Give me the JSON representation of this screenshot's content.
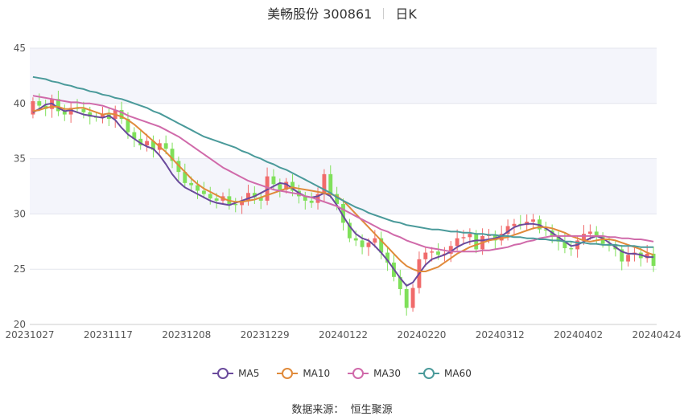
{
  "header": {
    "stock_name": "美畅股份 300861",
    "period": "日K"
  },
  "footer": {
    "source_label": "数据来源：",
    "source_name": "恒生聚源"
  },
  "chart_data": {
    "type": "candlestick",
    "ylim": [
      20,
      45
    ],
    "y_ticks": [
      "20",
      "25",
      "30",
      "35",
      "40",
      "45"
    ],
    "x_ticks": [
      "20231027",
      "20231117",
      "20231208",
      "20231229",
      "20240122",
      "20240220",
      "20240312",
      "20240402",
      "20240424"
    ],
    "grid": true,
    "legend_position": "bottom",
    "colors": {
      "up": "#f06b6b",
      "down": "#7fe05a",
      "MA5": "#6a4a9c",
      "MA10": "#e08a3a",
      "MA30": "#d06aaa",
      "MA60": "#4a9a9a",
      "band": "#f4f5fb"
    },
    "series": [
      {
        "name": "MA5",
        "values": [
          39.2,
          39.5,
          39.9,
          40.0,
          39.6,
          39.3,
          39.4,
          39.2,
          39.0,
          38.9,
          38.8,
          38.7,
          38.9,
          38.5,
          37.8,
          37.2,
          36.8,
          36.4,
          36.1,
          35.9,
          35.3,
          34.5,
          33.6,
          32.9,
          32.4,
          32.1,
          31.8,
          31.5,
          31.2,
          31.0,
          30.9,
          30.8,
          31.0,
          31.2,
          31.4,
          31.6,
          31.9,
          32.2,
          32.5,
          32.8,
          32.7,
          32.3,
          31.9,
          31.6,
          31.5,
          31.6,
          31.9,
          31.6,
          30.8,
          29.8,
          28.9,
          28.2,
          27.8,
          27.6,
          27.1,
          26.5,
          25.8,
          25.0,
          24.2,
          23.5,
          23.8,
          24.6,
          25.4,
          25.9,
          26.1,
          26.3,
          26.6,
          27.0,
          27.3,
          27.5,
          27.6,
          27.6,
          27.7,
          27.8,
          28.0,
          28.4,
          28.8,
          29.0,
          29.1,
          29.1,
          29.0,
          28.7,
          28.3,
          27.9,
          27.5,
          27.1,
          27.2,
          27.5,
          27.8,
          28.0,
          27.8,
          27.4,
          27.0,
          26.6,
          26.4,
          26.4,
          26.3,
          26.1,
          26.1
        ]
      },
      {
        "name": "MA10",
        "values": [
          39.3,
          39.4,
          39.6,
          39.7,
          39.7,
          39.5,
          39.5,
          39.6,
          39.6,
          39.4,
          39.2,
          39.0,
          39.1,
          39.0,
          38.8,
          38.5,
          38.1,
          37.6,
          37.1,
          36.6,
          36.1,
          35.6,
          35.0,
          34.4,
          33.8,
          33.2,
          32.7,
          32.3,
          32.0,
          31.7,
          31.4,
          31.2,
          31.1,
          31.1,
          31.2,
          31.3,
          31.5,
          31.7,
          31.9,
          32.1,
          32.3,
          32.4,
          32.3,
          32.2,
          32.1,
          32.0,
          31.9,
          31.8,
          31.6,
          31.2,
          30.6,
          30.0,
          29.4,
          28.8,
          28.2,
          27.6,
          27.0,
          26.4,
          25.8,
          25.3,
          25.0,
          24.8,
          24.8,
          25.0,
          25.2,
          25.6,
          26.0,
          26.4,
          26.7,
          27.0,
          27.2,
          27.4,
          27.6,
          27.7,
          27.8,
          27.9,
          28.1,
          28.3,
          28.5,
          28.7,
          28.8,
          28.8,
          28.7,
          28.5,
          28.3,
          28.0,
          27.8,
          27.6,
          27.5,
          27.6,
          27.7,
          27.7,
          27.6,
          27.4,
          27.2,
          27.0,
          26.8,
          26.5,
          26.3
        ]
      },
      {
        "name": "MA30",
        "values": [
          40.7,
          40.6,
          40.5,
          40.4,
          40.3,
          40.2,
          40.1,
          40.1,
          40.0,
          40.0,
          39.9,
          39.8,
          39.6,
          39.4,
          39.2,
          38.9,
          38.7,
          38.5,
          38.3,
          38.1,
          37.9,
          37.6,
          37.3,
          37.0,
          36.6,
          36.2,
          35.8,
          35.4,
          35.0,
          34.6,
          34.2,
          33.9,
          33.6,
          33.3,
          33.0,
          32.8,
          32.6,
          32.4,
          32.2,
          32.1,
          32.0,
          31.9,
          31.8,
          31.6,
          31.5,
          31.3,
          31.1,
          30.9,
          30.7,
          30.4,
          30.1,
          29.8,
          29.5,
          29.2,
          28.9,
          28.6,
          28.4,
          28.1,
          27.9,
          27.6,
          27.4,
          27.2,
          27.0,
          26.9,
          26.8,
          26.7,
          26.6,
          26.6,
          26.6,
          26.6,
          26.6,
          26.7,
          26.7,
          26.8,
          26.9,
          27.0,
          27.2,
          27.3,
          27.5,
          27.6,
          27.8,
          27.9,
          28.0,
          28.0,
          28.0,
          28.0,
          28.0,
          28.0,
          28.0,
          28.0,
          28.0,
          27.9,
          27.9,
          27.8,
          27.8,
          27.7,
          27.7,
          27.6,
          27.5
        ]
      },
      {
        "name": "MA60",
        "values": [
          42.4,
          42.3,
          42.2,
          42.0,
          41.9,
          41.7,
          41.6,
          41.4,
          41.3,
          41.1,
          41.0,
          40.8,
          40.7,
          40.5,
          40.4,
          40.2,
          40.0,
          39.8,
          39.6,
          39.3,
          39.1,
          38.8,
          38.5,
          38.2,
          37.9,
          37.6,
          37.3,
          37.0,
          36.8,
          36.6,
          36.4,
          36.2,
          36.0,
          35.7,
          35.5,
          35.2,
          35.0,
          34.7,
          34.5,
          34.2,
          34.0,
          33.7,
          33.4,
          33.1,
          32.8,
          32.5,
          32.2,
          31.9,
          31.5,
          31.2,
          30.9,
          30.6,
          30.4,
          30.1,
          29.9,
          29.7,
          29.5,
          29.3,
          29.2,
          29.0,
          28.9,
          28.8,
          28.7,
          28.6,
          28.6,
          28.5,
          28.4,
          28.4,
          28.3,
          28.3,
          28.2,
          28.2,
          28.1,
          28.1,
          28.0,
          28.0,
          27.9,
          27.9,
          27.8,
          27.8,
          27.7,
          27.7,
          27.6,
          27.6,
          27.5,
          27.5,
          27.4,
          27.4,
          27.3,
          27.3,
          27.2,
          27.2,
          27.2,
          27.1,
          27.1,
          27.1,
          27.0,
          27.0,
          27.0
        ]
      }
    ],
    "candles_close": [
      40.2,
      39.8,
      39.5,
      40.4,
      39.3,
      39.0,
      39.6,
      39.5,
      39.2,
      38.8,
      38.7,
      39.0,
      38.6,
      39.4,
      38.6,
      37.4,
      36.8,
      36.2,
      36.6,
      35.8,
      36.4,
      35.9,
      34.8,
      33.8,
      32.8,
      32.6,
      32.1,
      31.8,
      31.4,
      31.2,
      31.6,
      30.9,
      30.8,
      31.2,
      31.9,
      31.5,
      31.2,
      33.4,
      32.7,
      32.2,
      32.9,
      32.1,
      31.6,
      31.2,
      31.0,
      31.8,
      33.6,
      31.8,
      30.9,
      29.2,
      27.8,
      27.6,
      27.0,
      27.4,
      27.8,
      26.5,
      25.6,
      24.3,
      23.2,
      21.5,
      23.3,
      25.9,
      26.5,
      26.6,
      26.3,
      26.4,
      27.1,
      27.8,
      27.9,
      28.2,
      26.8,
      28.0,
      28.1,
      27.6,
      28.2,
      28.9,
      29.1,
      29.0,
      29.3,
      29.5,
      28.6,
      28.5,
      28.0,
      27.5,
      26.9,
      26.8,
      27.6,
      28.2,
      28.4,
      28.0,
      27.3,
      27.1,
      26.8,
      25.7,
      26.3,
      26.5,
      26.0,
      26.4,
      25.3
    ]
  }
}
